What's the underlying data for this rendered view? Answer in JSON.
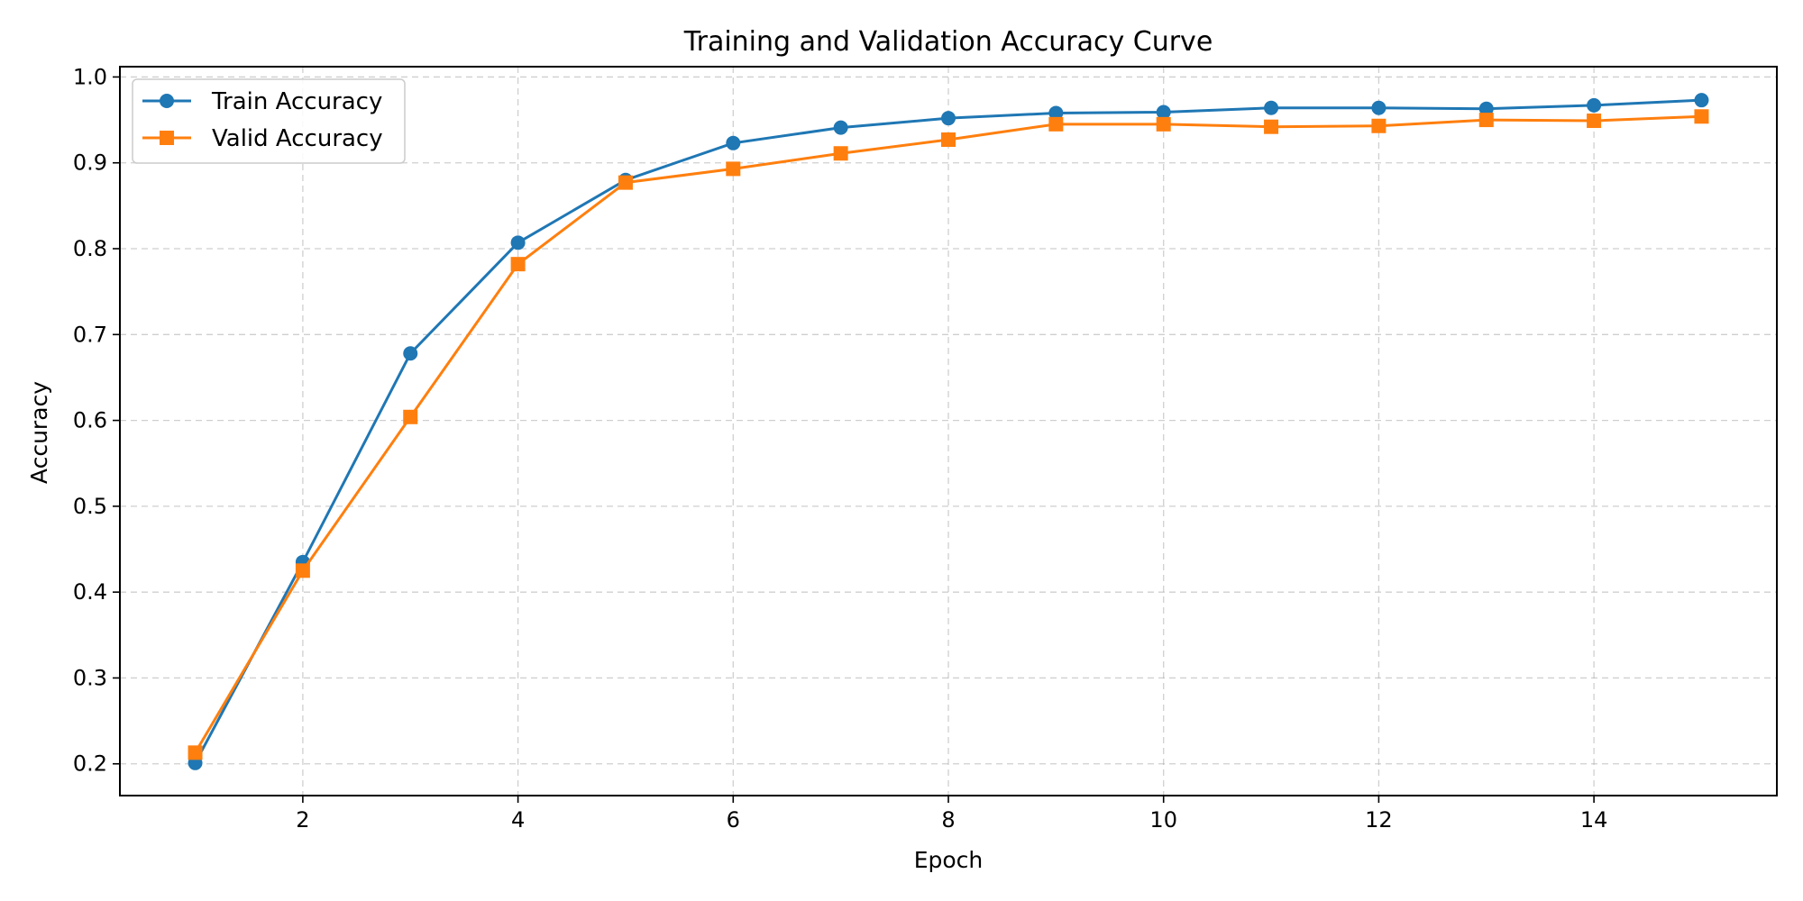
{
  "chart_data": {
    "type": "line",
    "title": "Training and Validation Accuracy Curve",
    "xlabel": "Epoch",
    "ylabel": "Accuracy",
    "xlim": [
      0.3,
      15.7
    ],
    "ylim": [
      0.163,
      1.012
    ],
    "xticks": [
      2,
      4,
      6,
      8,
      10,
      12,
      14
    ],
    "yticks": [
      0.2,
      0.3,
      0.4,
      0.5,
      0.6,
      0.7,
      0.8,
      0.9,
      1.0
    ],
    "ytick_labels": [
      "0.2",
      "0.3",
      "0.4",
      "0.5",
      "0.6",
      "0.7",
      "0.8",
      "0.9",
      "1.0"
    ],
    "grid": true,
    "legend_position": "top-left",
    "x": [
      1,
      2,
      3,
      4,
      5,
      6,
      7,
      8,
      9,
      10,
      11,
      12,
      13,
      14,
      15
    ],
    "series": [
      {
        "name": "Train Accuracy",
        "color": "#1f77b4",
        "marker": "circle",
        "values": [
          0.201,
          0.435,
          0.678,
          0.807,
          0.88,
          0.923,
          0.941,
          0.952,
          0.958,
          0.959,
          0.964,
          0.964,
          0.963,
          0.967,
          0.973
        ]
      },
      {
        "name": "Valid Accuracy",
        "color": "#ff7f0e",
        "marker": "square",
        "values": [
          0.213,
          0.425,
          0.604,
          0.782,
          0.877,
          0.893,
          0.911,
          0.927,
          0.945,
          0.945,
          0.942,
          0.943,
          0.95,
          0.949,
          0.954
        ]
      }
    ]
  }
}
